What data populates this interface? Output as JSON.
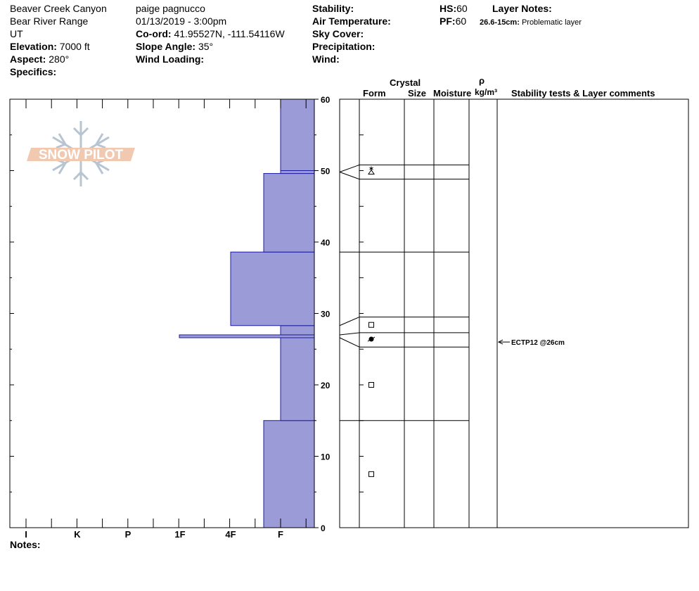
{
  "header": {
    "location": "Beaver Creek Canyon",
    "range": "Bear River Range",
    "state": "UT",
    "elevation_label": "Elevation:",
    "elevation_value": "7000 ft",
    "aspect_label": "Aspect:",
    "aspect_value": "280°",
    "specifics_label": "Specifics:",
    "observer": "paige pagnucco",
    "datetime": "01/13/2019 - 3:00pm",
    "coord_label": "Co-ord:",
    "coord_value": "41.95527N, -111.54116W",
    "slope_label": "Slope Angle:",
    "slope_value": "35°",
    "wind_loading_label": "Wind Loading:",
    "stability_label": "Stability:",
    "air_temp_label": "Air Temperature:",
    "sky_cover_label": "Sky Cover:",
    "precip_label": "Precipitation:",
    "wind_label": "Wind:",
    "hs_label": "HS:",
    "hs_value": "60",
    "pf_label": "PF:",
    "pf_value": "60",
    "layer_notes_label": "Layer Notes:",
    "layer_note_range": "26.6-15cm:",
    "layer_note_text": "Problematic layer"
  },
  "logo": {
    "text": "SNOW PILOT"
  },
  "columns": {
    "crystal": "Crystal",
    "form": "Form",
    "size": "Size",
    "moisture": "Moisture",
    "rho": "ρ",
    "density_unit": "kg/m³",
    "stability": "Stability tests & Layer comments"
  },
  "notes_label": "Notes:",
  "colors": {
    "hardness_fill": "#9b9bd7",
    "hardness_stroke": "#1c1c9c"
  },
  "chart_data": {
    "type": "snow_profile",
    "y_axis": {
      "label": "",
      "ylim": [
        0,
        60
      ],
      "ticks": [
        0,
        10,
        20,
        30,
        40,
        50,
        60
      ]
    },
    "x_axis": {
      "hardness_ticks": [
        "I",
        "K",
        "P",
        "1F",
        "4F",
        "F"
      ]
    },
    "hardness_layers": [
      {
        "bottom": 0,
        "top": 15,
        "hardness": "F+"
      },
      {
        "bottom": 15,
        "top": 26.6,
        "hardness": "F"
      },
      {
        "bottom": 26.6,
        "top": 27,
        "hardness": "1F+"
      },
      {
        "bottom": 27,
        "top": 28.3,
        "hardness": "F"
      },
      {
        "bottom": 28.3,
        "top": 38.6,
        "hardness": "4F"
      },
      {
        "bottom": 38.6,
        "top": 49.6,
        "hardness": "F+"
      },
      {
        "bottom": 49.6,
        "top": 50,
        "hardness": "F"
      },
      {
        "bottom": 50,
        "top": 60,
        "hardness": "F"
      }
    ],
    "layer_boundaries": [
      60,
      50.8,
      48.8,
      38.6,
      29.5,
      27.3,
      25.3,
      15
    ],
    "crystal_forms": [
      {
        "height": 50,
        "form": "precipitation-decomposing"
      },
      {
        "height": 28.4,
        "form": "faceted"
      },
      {
        "height": 26.4,
        "form": "melt-freeze"
      },
      {
        "height": 20,
        "form": "faceted"
      },
      {
        "height": 7.5,
        "form": "faceted"
      }
    ],
    "stability_tests": [
      {
        "height": 26,
        "label": "ECTP12 @26cm"
      }
    ]
  }
}
